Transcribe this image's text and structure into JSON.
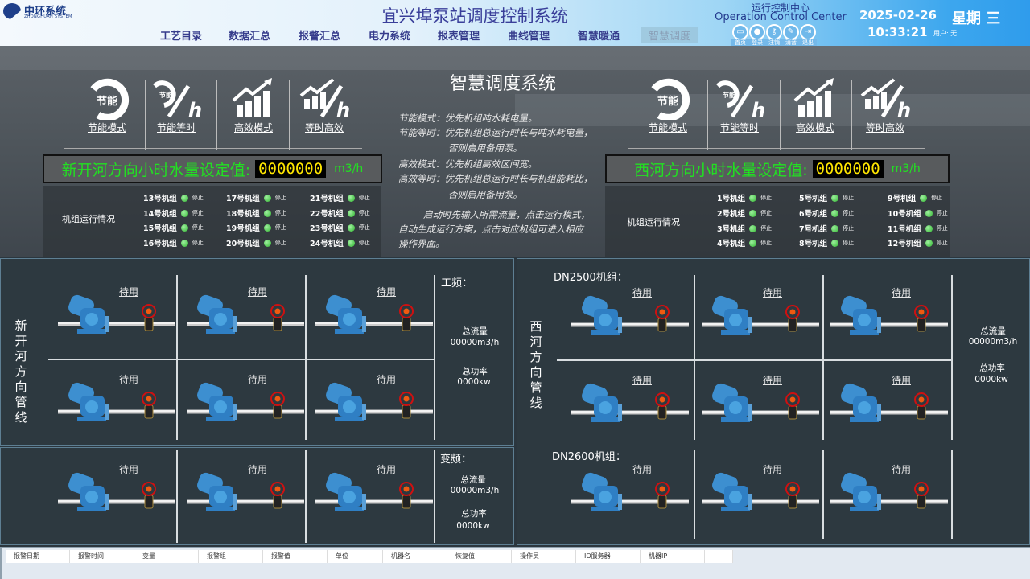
{
  "header": {
    "logo_text": "中环系统",
    "logo_sub": "ZHONGHUAN SYSTEM",
    "title": "宜兴埠泵站调度控制系统",
    "nav": [
      "工艺目录",
      "数据汇总",
      "报警汇总",
      "电力系统",
      "报表管理",
      "曲线管理",
      "智慧暖通",
      "智慧调度"
    ],
    "active_nav": "智慧调度",
    "center_cn": "运行控制中心",
    "center_en": "Operation Control Center",
    "icons": [
      {
        "icon": "home-icon",
        "label": "首页"
      },
      {
        "icon": "login-icon",
        "label": "登录"
      },
      {
        "icon": "logout-key-icon",
        "label": "注销"
      },
      {
        "icon": "mute-icon",
        "label": "消音"
      },
      {
        "icon": "exit-icon",
        "label": "退出"
      }
    ],
    "date": "2025-02-26",
    "time": "10:33:21",
    "weekday": "星期 三",
    "user": "用户: 无"
  },
  "top": {
    "title": "智慧调度系统",
    "modes": [
      {
        "label": "节能模式",
        "icon": "energy-saving-icon"
      },
      {
        "label": "节能等时",
        "icon": "energy-per-hour-icon"
      },
      {
        "label": "高效模式",
        "icon": "efficiency-chart-icon"
      },
      {
        "label": "等时高效",
        "icon": "efficiency-per-hour-icon"
      }
    ],
    "desc": [
      "节能模式：优先机组吨水耗电量。",
      "节能等时：优先机组总运行时长与吨水耗电量，",
      "否则启用备用泵。",
      "高效模式：优先机组高效区间宽。",
      "高效等时：优先机组总运行时长与机组能耗比，",
      "否则启用备用泵。",
      "启动时先输入所需流量，点击运行模式，",
      "自动生成运行方案，点击对应机组可进入相应",
      "操作界面。"
    ],
    "left_set": {
      "label": "新开河方向小时水量设定值:",
      "value": "0000000",
      "unit": "m3/h"
    },
    "right_set": {
      "label": "西河方向小时水量设定值:",
      "value": "0000000",
      "unit": "m3/h"
    },
    "run_label": "机组运行情况",
    "left_units": [
      [
        "13号机组",
        "14号机组",
        "15号机组",
        "16号机组"
      ],
      [
        "17号机组",
        "18号机组",
        "19号机组",
        "20号机组"
      ],
      [
        "21号机组",
        "22号机组",
        "23号机组",
        "24号机组"
      ]
    ],
    "right_units": [
      [
        "1号机组",
        "2号机组",
        "3号机组",
        "4号机组"
      ],
      [
        "5号机组",
        "6号机组",
        "7号机组",
        "8号机组"
      ],
      [
        "9号机组",
        "10号机组",
        "11号机组",
        "12号机组"
      ]
    ],
    "unit_status": "停止",
    "status_color": "#3cc43c"
  },
  "left": {
    "side_label": "新开河方向管线",
    "gp_label": "工频：",
    "vf_label": "变频：",
    "gp_flow_label": "总流量",
    "gp_flow": "00000m3/h",
    "gp_power_label": "总功率",
    "gp_power": "0000kw",
    "vf_flow_label": "总流量",
    "vf_flow": "00000m3/h",
    "vf_power_label": "总功率",
    "vf_power": "0000kw",
    "pumps": [
      "待用",
      "待用",
      "待用",
      "待用",
      "待用",
      "待用",
      "待用",
      "待用",
      "待用"
    ]
  },
  "right": {
    "side_label": "西河方向管线",
    "dn2500": "DN2500机组：",
    "dn2600": "DN2600机组：",
    "flow_label": "总流量",
    "flow": "00000m3/h",
    "power_label": "总功率",
    "power": "0000kw",
    "pumps": [
      "待用",
      "待用",
      "待用",
      "待用",
      "待用",
      "待用",
      "待用",
      "待用",
      "待用"
    ]
  },
  "alarm": {
    "columns": [
      "报警日期",
      "报警时间",
      "变量",
      "报警组",
      "报警值",
      "单位",
      "机器名",
      "恢复值",
      "操作员",
      "IO服务器",
      "机器IP"
    ]
  }
}
